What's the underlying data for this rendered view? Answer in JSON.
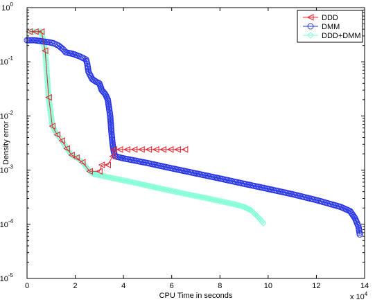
{
  "chart_data": {
    "type": "line",
    "xlabel": "CPU Time in seconds",
    "ylabel": "Density error",
    "x_multiplier_label": "x 10",
    "x_multiplier_exp": "4",
    "xlim": [
      0,
      14
    ],
    "ylim": [
      1e-05,
      1
    ],
    "yscale": "log",
    "grid": false,
    "legend_position": "top-right",
    "x_ticks": [
      0,
      2,
      4,
      6,
      8,
      10,
      12,
      14
    ],
    "x_tick_labels": [
      "0",
      "2",
      "4",
      "6",
      "8",
      "10",
      "12",
      "14"
    ],
    "y_ticks": [
      1e-05,
      0.0001,
      0.001,
      0.01,
      0.1,
      1
    ],
    "y_tick_bases": [
      "10",
      "10",
      "10",
      "10",
      "10",
      "10"
    ],
    "y_tick_exps": [
      "-5",
      "-4",
      "-3",
      "-2",
      "-1",
      "0"
    ],
    "series": [
      {
        "name": "DDD",
        "color": "#e8202a",
        "marker": "triangle-left",
        "points": [
          [
            0.1,
            0.36
          ],
          [
            0.35,
            0.36
          ],
          [
            0.6,
            0.36
          ],
          [
            0.75,
            0.16
          ],
          [
            0.9,
            0.022
          ],
          [
            1.05,
            0.0065
          ],
          [
            1.25,
            0.0045
          ],
          [
            1.45,
            0.0035
          ],
          [
            1.65,
            0.0025
          ],
          [
            1.85,
            0.0019
          ],
          [
            2.05,
            0.0017
          ],
          [
            2.3,
            0.0014
          ],
          [
            2.6,
            0.00095
          ],
          [
            3.0,
            0.00095
          ],
          [
            3.1,
            0.00125
          ],
          [
            3.35,
            0.00125
          ],
          [
            3.55,
            0.0018
          ],
          [
            3.6,
            0.0024
          ],
          [
            3.85,
            0.0024
          ],
          [
            4.15,
            0.0024
          ],
          [
            4.45,
            0.0024
          ],
          [
            4.75,
            0.0024
          ],
          [
            5.05,
            0.0024
          ],
          [
            5.35,
            0.0024
          ],
          [
            5.65,
            0.0024
          ],
          [
            5.95,
            0.0024
          ],
          [
            6.25,
            0.0024
          ],
          [
            6.55,
            0.0024
          ]
        ]
      },
      {
        "name": "DMM",
        "color": "#2533e6",
        "marker": "circle",
        "points": [
          [
            0.0,
            0.25
          ],
          [
            0.3,
            0.25
          ],
          [
            0.6,
            0.24
          ],
          [
            0.9,
            0.23
          ],
          [
            1.1,
            0.22
          ],
          [
            1.3,
            0.2
          ],
          [
            1.5,
            0.17
          ],
          [
            1.6,
            0.15
          ],
          [
            1.9,
            0.14
          ],
          [
            2.2,
            0.125
          ],
          [
            2.45,
            0.11
          ],
          [
            2.5,
            0.09
          ],
          [
            2.55,
            0.065
          ],
          [
            2.7,
            0.048
          ],
          [
            2.9,
            0.042
          ],
          [
            3.0,
            0.04
          ],
          [
            3.1,
            0.03
          ],
          [
            3.25,
            0.025
          ],
          [
            3.35,
            0.02
          ],
          [
            3.45,
            0.01
          ],
          [
            3.5,
            0.005
          ],
          [
            3.55,
            0.003
          ],
          [
            3.6,
            0.0022
          ],
          [
            3.65,
            0.0018
          ],
          [
            4.0,
            0.00165
          ],
          [
            5.0,
            0.00135
          ],
          [
            6.0,
            0.00108
          ],
          [
            7.0,
            0.00087
          ],
          [
            8.0,
            0.0007
          ],
          [
            9.0,
            0.00056
          ],
          [
            10.0,
            0.00045
          ],
          [
            11.0,
            0.00036
          ],
          [
            12.0,
            0.00028
          ],
          [
            13.0,
            0.00021
          ],
          [
            13.4,
            0.000175
          ],
          [
            13.6,
            0.00013
          ],
          [
            13.75,
            9e-05
          ],
          [
            13.8,
            6.5e-05
          ]
        ]
      },
      {
        "name": "DDD+DMM",
        "color": "#7fffd4",
        "marker": "diamond",
        "points": [
          [
            0.1,
            0.36
          ],
          [
            0.35,
            0.36
          ],
          [
            0.6,
            0.36
          ],
          [
            0.75,
            0.16
          ],
          [
            0.9,
            0.022
          ],
          [
            1.05,
            0.0065
          ],
          [
            1.25,
            0.0045
          ],
          [
            1.45,
            0.0035
          ],
          [
            1.65,
            0.0025
          ],
          [
            1.85,
            0.0019
          ],
          [
            2.05,
            0.0017
          ],
          [
            2.3,
            0.0014
          ],
          [
            2.6,
            0.00095
          ],
          [
            2.75,
            0.00085
          ],
          [
            3.5,
            0.00072
          ],
          [
            4.5,
            0.00058
          ],
          [
            5.5,
            0.00046
          ],
          [
            6.5,
            0.00037
          ],
          [
            7.5,
            0.0003
          ],
          [
            8.5,
            0.00024
          ],
          [
            9.0,
            0.00021
          ],
          [
            9.3,
            0.00018
          ],
          [
            9.55,
            0.00014
          ],
          [
            9.7,
            0.00012
          ],
          [
            9.8,
            0.000105
          ]
        ]
      }
    ]
  }
}
